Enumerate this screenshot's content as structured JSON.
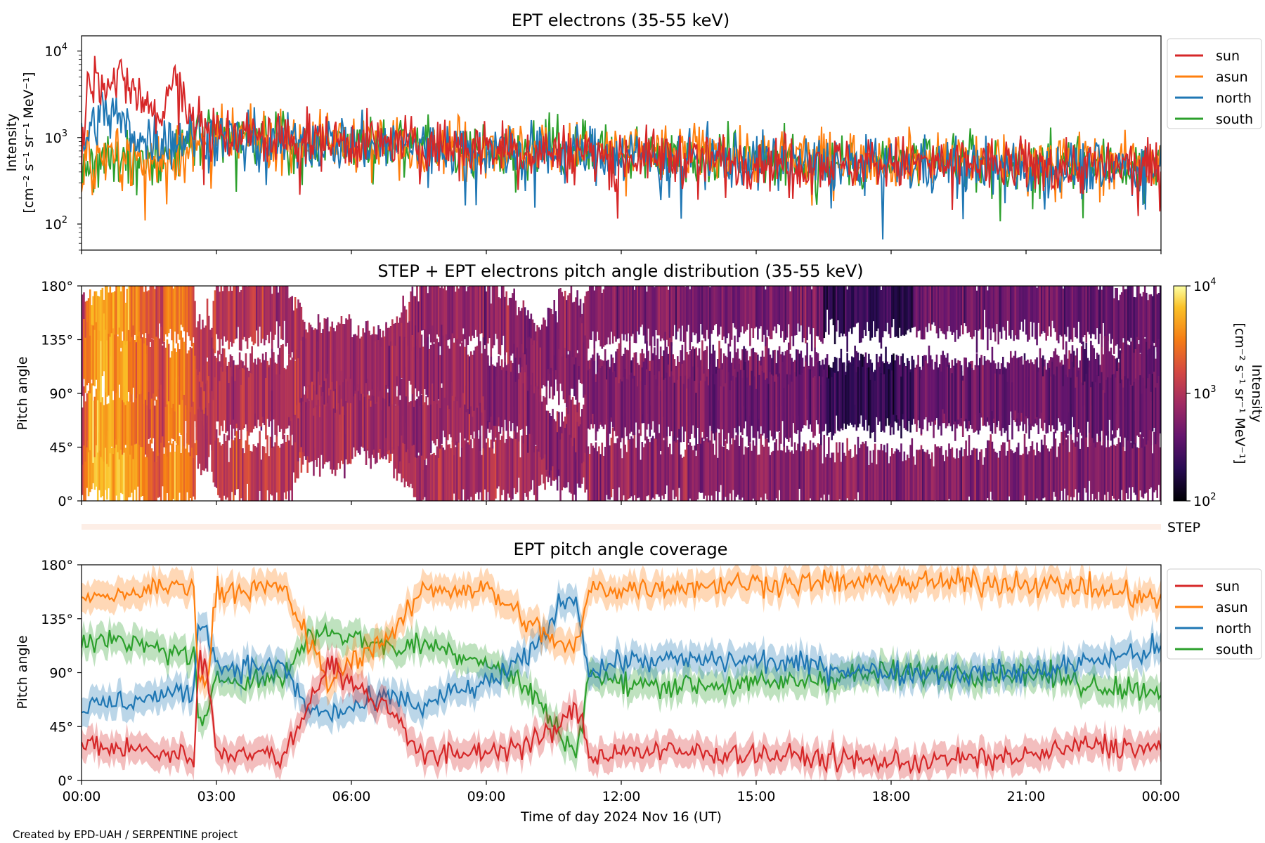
{
  "chart_data": [
    {
      "type": "line",
      "title": "EPT electrons (35-55 keV)",
      "ylabel_line1": "Intensity",
      "ylabel_line2": "[cm⁻² s⁻¹ sr⁻¹ MeV⁻¹]",
      "yscale": "log",
      "ylim": [
        50,
        15000
      ],
      "y_ticks": [
        {
          "value": 100,
          "base": "10",
          "exp": "2"
        },
        {
          "value": 1000,
          "base": "10",
          "exp": "3"
        },
        {
          "value": 10000,
          "base": "10",
          "exp": "4"
        }
      ],
      "xlim_hours": [
        0,
        24
      ],
      "legend": "outside-right",
      "series": [
        {
          "name": "sun",
          "color": "#d62728",
          "x": [
            0,
            0.1,
            0.2,
            0.5,
            1.0,
            1.5,
            1.8,
            2.0,
            2.2,
            2.5,
            2.7,
            3,
            4,
            6,
            8,
            10,
            12,
            14,
            16,
            18,
            20,
            22,
            24
          ],
          "values": [
            700,
            2500,
            5200,
            5200,
            4200,
            2200,
            1500,
            4200,
            3600,
            1700,
            1250,
            1150,
            1000,
            900,
            800,
            700,
            620,
            560,
            520,
            500,
            480,
            460,
            450
          ]
        },
        {
          "name": "asun",
          "color": "#ff7f0e",
          "x": [
            0,
            0.5,
            1.0,
            1.5,
            2.0,
            2.5,
            3,
            4,
            6,
            8,
            10,
            12,
            14,
            16,
            18,
            20,
            22,
            24
          ],
          "values": [
            600,
            650,
            600,
            550,
            600,
            700,
            900,
            950,
            900,
            850,
            750,
            700,
            650,
            600,
            580,
            560,
            540,
            520
          ]
        },
        {
          "name": "north",
          "color": "#1f77b4",
          "x": [
            0,
            0.3,
            0.7,
            1.0,
            1.5,
            2.0,
            2.5,
            3,
            4,
            6,
            8,
            10,
            12,
            14,
            16,
            18,
            20,
            22,
            24
          ],
          "values": [
            700,
            1600,
            2000,
            1200,
            1000,
            900,
            1100,
            1000,
            900,
            850,
            780,
            700,
            630,
            560,
            510,
            480,
            460,
            450,
            440
          ]
        },
        {
          "name": "south",
          "color": "#2ca02c",
          "x": [
            0,
            0.5,
            1.0,
            1.5,
            2.0,
            2.5,
            3,
            4,
            6,
            8,
            10,
            12,
            14,
            16,
            18,
            20,
            22,
            24
          ],
          "values": [
            400,
            650,
            600,
            550,
            600,
            900,
            1100,
            1000,
            900,
            820,
            740,
            680,
            620,
            570,
            520,
            500,
            480,
            460
          ]
        }
      ]
    },
    {
      "type": "heatmap",
      "title": "STEP + EPT electrons pitch angle distribution (35-55 keV)",
      "ylabel": "Pitch angle",
      "ylim": [
        0,
        180
      ],
      "y_ticks": [
        "0°",
        "45°",
        "90°",
        "135°",
        "180°"
      ],
      "xlim_hours": [
        0,
        24
      ],
      "colormap": "inferno",
      "colorbar": {
        "scale": "log",
        "range": [
          100,
          10000
        ],
        "ticks": [
          {
            "value": 100,
            "base": "10",
            "exp": "2"
          },
          {
            "value": 1000,
            "base": "10",
            "exp": "3"
          },
          {
            "value": 10000,
            "base": "10",
            "exp": "4"
          }
        ],
        "label": "Intensity\n[cm⁻² s⁻¹ sr⁻¹ MeV⁻¹]"
      },
      "step_label": "STEP"
    },
    {
      "type": "line",
      "title": "EPT pitch angle coverage",
      "ylabel": "Pitch angle",
      "ylim": [
        0,
        180
      ],
      "y_ticks": [
        "0°",
        "45°",
        "90°",
        "135°",
        "180°"
      ],
      "xlim_hours": [
        0,
        24
      ],
      "xlabel": "Time of day 2024 Nov 16 (UT)",
      "x_ticks": [
        "00:00",
        "03:00",
        "06:00",
        "09:00",
        "12:00",
        "15:00",
        "18:00",
        "21:00",
        "00:00"
      ],
      "legend": "outside-right",
      "series": [
        {
          "name": "sun",
          "color": "#d62728",
          "x": [
            0,
            2.5,
            2.6,
            2.8,
            3.0,
            4.5,
            5.0,
            5.5,
            6.0,
            7.0,
            7.6,
            8.0,
            9,
            10,
            10.8,
            11.0,
            11.3,
            12,
            15,
            18,
            21,
            22.5,
            24
          ],
          "values": [
            30,
            20,
            100,
            90,
            25,
            20,
            60,
            100,
            80,
            55,
            20,
            20,
            25,
            30,
            50,
            65,
            20,
            25,
            22,
            15,
            20,
            30,
            25
          ]
        },
        {
          "name": "asun",
          "color": "#ff7f0e",
          "x": [
            0,
            2.5,
            2.6,
            2.8,
            3.0,
            4.5,
            5.0,
            5.5,
            6.0,
            7.0,
            7.6,
            8.0,
            9,
            10,
            10.8,
            11.0,
            11.3,
            12,
            15,
            18,
            21,
            22.5,
            24
          ],
          "values": [
            150,
            165,
            80,
            85,
            160,
            160,
            120,
            80,
            100,
            125,
            160,
            160,
            160,
            130,
            110,
            110,
            160,
            160,
            165,
            165,
            165,
            160,
            150
          ]
        },
        {
          "name": "north",
          "color": "#1f77b4",
          "x": [
            0,
            2.5,
            2.6,
            2.8,
            3.0,
            4.5,
            5.0,
            5.5,
            6.0,
            7.0,
            7.6,
            8.0,
            9,
            10,
            10.8,
            11.0,
            11.3,
            12,
            15,
            18,
            21,
            22.5,
            24
          ],
          "values": [
            60,
            75,
            130,
            130,
            95,
            95,
            60,
            55,
            60,
            70,
            60,
            70,
            80,
            105,
            155,
            150,
            90,
            100,
            100,
            90,
            90,
            100,
            110
          ]
        },
        {
          "name": "south",
          "color": "#2ca02c",
          "x": [
            0,
            2.5,
            2.6,
            2.8,
            3.0,
            4.5,
            5.0,
            5.5,
            6.0,
            7.0,
            7.6,
            8.0,
            9,
            10,
            10.8,
            11.0,
            11.3,
            12,
            15,
            18,
            21,
            22.5,
            24
          ],
          "values": [
            120,
            105,
            50,
            50,
            85,
            85,
            120,
            125,
            120,
            110,
            115,
            110,
            100,
            75,
            30,
            25,
            90,
            80,
            80,
            90,
            90,
            80,
            75
          ]
        }
      ]
    }
  ],
  "footer": {
    "credit": "Created by EPD-UAH / SERPENTINE project"
  }
}
